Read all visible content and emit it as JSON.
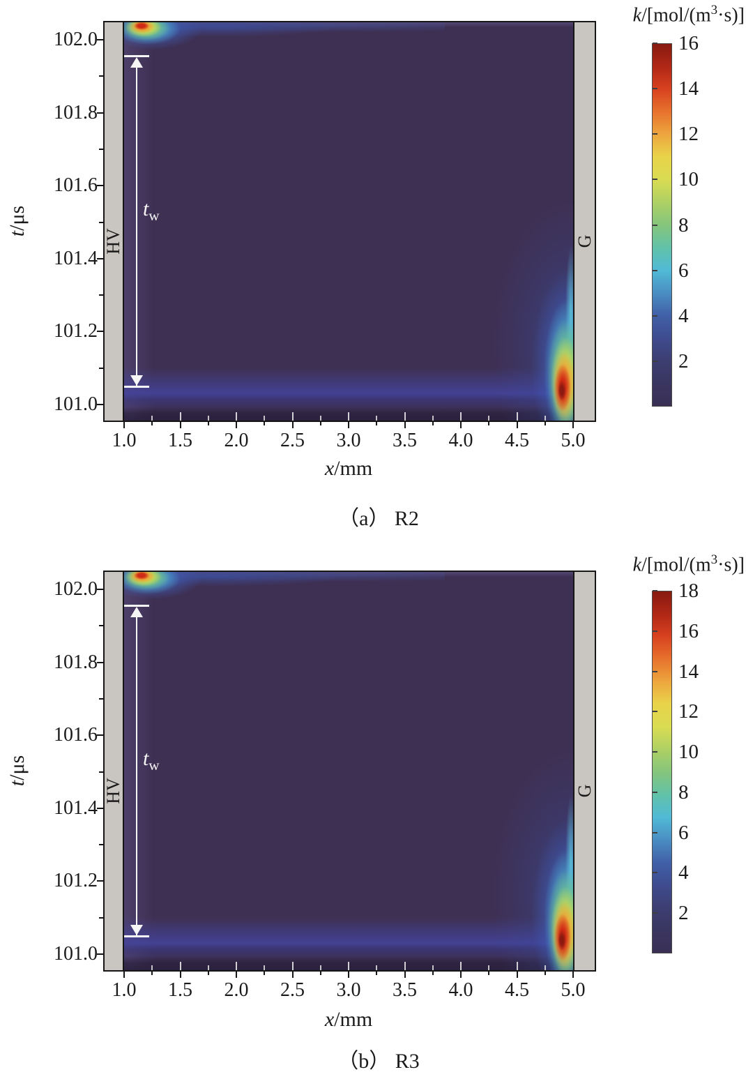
{
  "figure": {
    "colorbar_title": {
      "k": "k",
      "pre": "/[mol/(m",
      "sup": "3",
      "post": "·s)]"
    }
  },
  "panels": [
    {
      "caption": "（a） R2",
      "x_label": {
        "var": "x",
        "unit": "/mm"
      },
      "y_label": {
        "var": "t",
        "unit": "/μs"
      },
      "electrode_left": "HV",
      "electrode_right": "G",
      "annotation": {
        "var": "t",
        "sub": "w"
      }
    },
    {
      "caption": "（b） R3",
      "x_label": {
        "var": "x",
        "unit": "/mm"
      },
      "y_label": {
        "var": "t",
        "unit": "/μs"
      },
      "electrode_left": "HV",
      "electrode_right": "G",
      "annotation": {
        "var": "t",
        "sub": "w"
      }
    }
  ],
  "chart_data": [
    {
      "type": "heatmap",
      "panel": "a",
      "reaction": "R2",
      "xlabel": "x/mm",
      "ylabel": "t/μs",
      "x_range_mm": [
        1.0,
        5.0
      ],
      "t_range_us": [
        100.95,
        102.05
      ],
      "x_tick_labels": [
        "1.0",
        "1.5",
        "2.0",
        "2.5",
        "3.0",
        "3.5",
        "4.0",
        "4.5",
        "5.0"
      ],
      "y_tick_labels": [
        "102.0",
        "101.8",
        "101.6",
        "101.4",
        "101.2",
        "101.0"
      ],
      "x_minor_step": 0.25,
      "y_minor_step": 0.1,
      "colorbar": {
        "label": "k/[mol/(m³·s)]",
        "min": 0,
        "max": 16,
        "tick_labels": [
          "16",
          "14",
          "12",
          "10",
          "8",
          "6",
          "4",
          "2"
        ],
        "colormap_stops": [
          [
            0.0,
            "#3a3054"
          ],
          [
            0.0625,
            "#3a3560"
          ],
          [
            0.125,
            "#3c3e72"
          ],
          [
            0.1875,
            "#3e4c8e"
          ],
          [
            0.25,
            "#4160a8"
          ],
          [
            0.3125,
            "#4a8ec2"
          ],
          [
            0.375,
            "#51bad6"
          ],
          [
            0.4375,
            "#62c2a8"
          ],
          [
            0.5,
            "#85c57c"
          ],
          [
            0.5625,
            "#aed064"
          ],
          [
            0.625,
            "#d9dc52"
          ],
          [
            0.6875,
            "#e9d44a"
          ],
          [
            0.75,
            "#eda63e"
          ],
          [
            0.8125,
            "#e7722d"
          ],
          [
            0.875,
            "#d84220"
          ],
          [
            0.9375,
            "#b02716"
          ],
          [
            1.0,
            "#871a10"
          ]
        ]
      },
      "electrodes": [
        {
          "label": "HV",
          "side": "left",
          "x_mm": [
            0.83,
            1.0
          ]
        },
        {
          "label": "G",
          "side": "right",
          "x_mm": [
            5.0,
            5.17
          ]
        }
      ],
      "annotations": [
        {
          "label": "t_w",
          "type": "double-headed-arrow",
          "x_mm": 1.12,
          "t_from_us": 101.05,
          "t_to_us": 101.95
        }
      ],
      "hotspots": [
        {
          "name": "ionization spot at HV electrode",
          "x_mm": 1.1,
          "t_us": 102.03,
          "peak_k": 16
        },
        {
          "name": "reaction flame at G electrode",
          "x_mm": 4.9,
          "t_us": 101.07,
          "peak_k": 16
        },
        {
          "name": "horizontal reaction band",
          "x_mm": [
            1.0,
            5.0
          ],
          "t_us": 101.03,
          "k": 4
        },
        {
          "name": "plume along G electrode",
          "x_mm": 4.95,
          "t_us": [
            101.1,
            101.5
          ],
          "k": 6
        }
      ]
    },
    {
      "type": "heatmap",
      "panel": "b",
      "reaction": "R3",
      "xlabel": "x/mm",
      "ylabel": "t/μs",
      "x_range_mm": [
        1.0,
        5.0
      ],
      "t_range_us": [
        100.95,
        102.05
      ],
      "x_tick_labels": [
        "1.0",
        "1.5",
        "2.0",
        "2.5",
        "3.0",
        "3.5",
        "4.0",
        "4.5",
        "5.0"
      ],
      "y_tick_labels": [
        "102.0",
        "101.8",
        "101.6",
        "101.4",
        "101.2",
        "101.0"
      ],
      "x_minor_step": 0.25,
      "y_minor_step": 0.1,
      "colorbar": {
        "label": "k/[mol/(m³·s)]",
        "min": 0,
        "max": 18,
        "tick_labels": [
          "18",
          "16",
          "14",
          "12",
          "10",
          "8",
          "6",
          "4",
          "2"
        ],
        "colormap_stops": [
          [
            0.0,
            "#3a3054"
          ],
          [
            0.0625,
            "#3a3560"
          ],
          [
            0.125,
            "#3c3e72"
          ],
          [
            0.1875,
            "#3e4c8e"
          ],
          [
            0.25,
            "#4160a8"
          ],
          [
            0.3125,
            "#4a8ec2"
          ],
          [
            0.375,
            "#51bad6"
          ],
          [
            0.4375,
            "#62c2a8"
          ],
          [
            0.5,
            "#85c57c"
          ],
          [
            0.5625,
            "#aed064"
          ],
          [
            0.625,
            "#d9dc52"
          ],
          [
            0.6875,
            "#e9d44a"
          ],
          [
            0.75,
            "#eda63e"
          ],
          [
            0.8125,
            "#e7722d"
          ],
          [
            0.875,
            "#d84220"
          ],
          [
            0.9375,
            "#b02716"
          ],
          [
            1.0,
            "#871a10"
          ]
        ]
      },
      "electrodes": [
        {
          "label": "HV",
          "side": "left",
          "x_mm": [
            0.83,
            1.0
          ]
        },
        {
          "label": "G",
          "side": "right",
          "x_mm": [
            5.0,
            5.17
          ]
        }
      ],
      "annotations": [
        {
          "label": "t_w",
          "type": "double-headed-arrow",
          "x_mm": 1.12,
          "t_from_us": 101.05,
          "t_to_us": 101.95
        }
      ],
      "hotspots": [
        {
          "name": "ionization spot at HV electrode",
          "x_mm": 1.1,
          "t_us": 102.03,
          "peak_k": 18
        },
        {
          "name": "reaction flame at G electrode",
          "x_mm": 4.9,
          "t_us": 101.07,
          "peak_k": 18
        },
        {
          "name": "horizontal reaction band",
          "x_mm": [
            1.0,
            5.0
          ],
          "t_us": 101.03,
          "k": 4
        },
        {
          "name": "plume along G electrode",
          "x_mm": 4.95,
          "t_us": [
            101.1,
            101.5
          ],
          "k": 6
        }
      ]
    }
  ]
}
